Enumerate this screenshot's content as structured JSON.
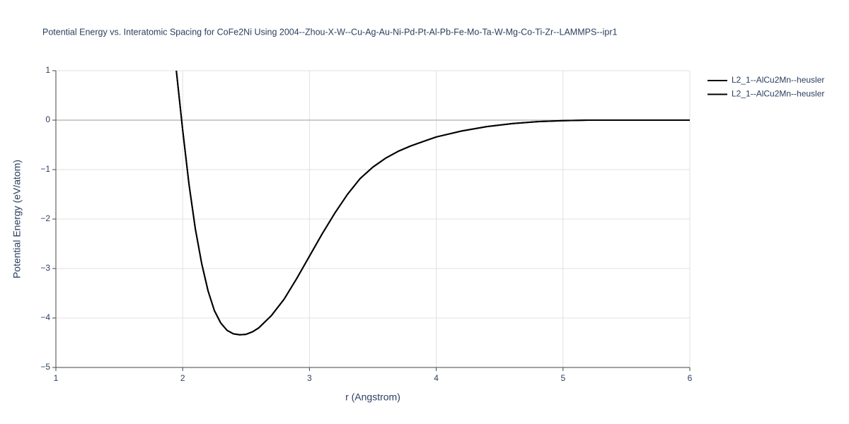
{
  "chart_data": {
    "type": "line",
    "title": "Potential Energy vs. Interatomic Spacing for CoFe2Ni Using 2004--Zhou-X-W--Cu-Ag-Au-Ni-Pd-Pt-Al-Pb-Fe-Mo-Ta-W-Mg-Co-Ti-Zr--LAMMPS--ipr1",
    "x_label": "r (Angstrom)",
    "y_label": "Potential Energy (eV/atom)",
    "x": [
      1.95,
      2.0,
      2.05,
      2.1,
      2.15,
      2.2,
      2.25,
      2.3,
      2.35,
      2.4,
      2.45,
      2.5,
      2.55,
      2.6,
      2.7,
      2.8,
      2.9,
      3.0,
      3.1,
      3.2,
      3.3,
      3.4,
      3.5,
      3.6,
      3.7,
      3.8,
      3.9,
      4.0,
      4.2,
      4.4,
      4.6,
      4.8,
      5.0,
      5.2,
      5.5,
      6.0
    ],
    "series": [
      {
        "name": "L2_1--AlCu2Mn--heusler",
        "color": "#000000",
        "values": [
          1,
          -0.2,
          -1.3,
          -2.2,
          -2.9,
          -3.45,
          -3.85,
          -4.1,
          -4.25,
          -4.32,
          -4.34,
          -4.33,
          -4.28,
          -4.2,
          -3.95,
          -3.62,
          -3.2,
          -2.75,
          -2.3,
          -1.88,
          -1.5,
          -1.18,
          -0.95,
          -0.77,
          -0.63,
          -0.52,
          -0.43,
          -0.34,
          -0.22,
          -0.13,
          -0.07,
          -0.03,
          -0.01,
          0,
          0,
          0
        ]
      },
      {
        "name": "L2_1--AlCu2Mn--heusler",
        "color": "#000000",
        "values": [
          1,
          -0.2,
          -1.3,
          -2.2,
          -2.9,
          -3.45,
          -3.85,
          -4.1,
          -4.25,
          -4.32,
          -4.34,
          -4.33,
          -4.28,
          -4.2,
          -3.95,
          -3.62,
          -3.2,
          -2.75,
          -2.3,
          -1.88,
          -1.5,
          -1.18,
          -0.95,
          -0.77,
          -0.63,
          -0.52,
          -0.43,
          -0.34,
          -0.22,
          -0.13,
          -0.07,
          -0.03,
          -0.01,
          0,
          0,
          0
        ]
      }
    ],
    "xlim": [
      1,
      6
    ],
    "ylim": [
      -5,
      1
    ],
    "xticks": [
      1,
      2,
      3,
      4,
      5,
      6
    ],
    "yticks": [
      1,
      0,
      {
        "value": -1,
        "label": "−1"
      },
      {
        "value": -2,
        "label": "−2"
      },
      {
        "value": -3,
        "label": "−3"
      },
      {
        "value": -4,
        "label": "−4"
      },
      {
        "value": -5,
        "label": "−5"
      }
    ],
    "grid": true
  }
}
